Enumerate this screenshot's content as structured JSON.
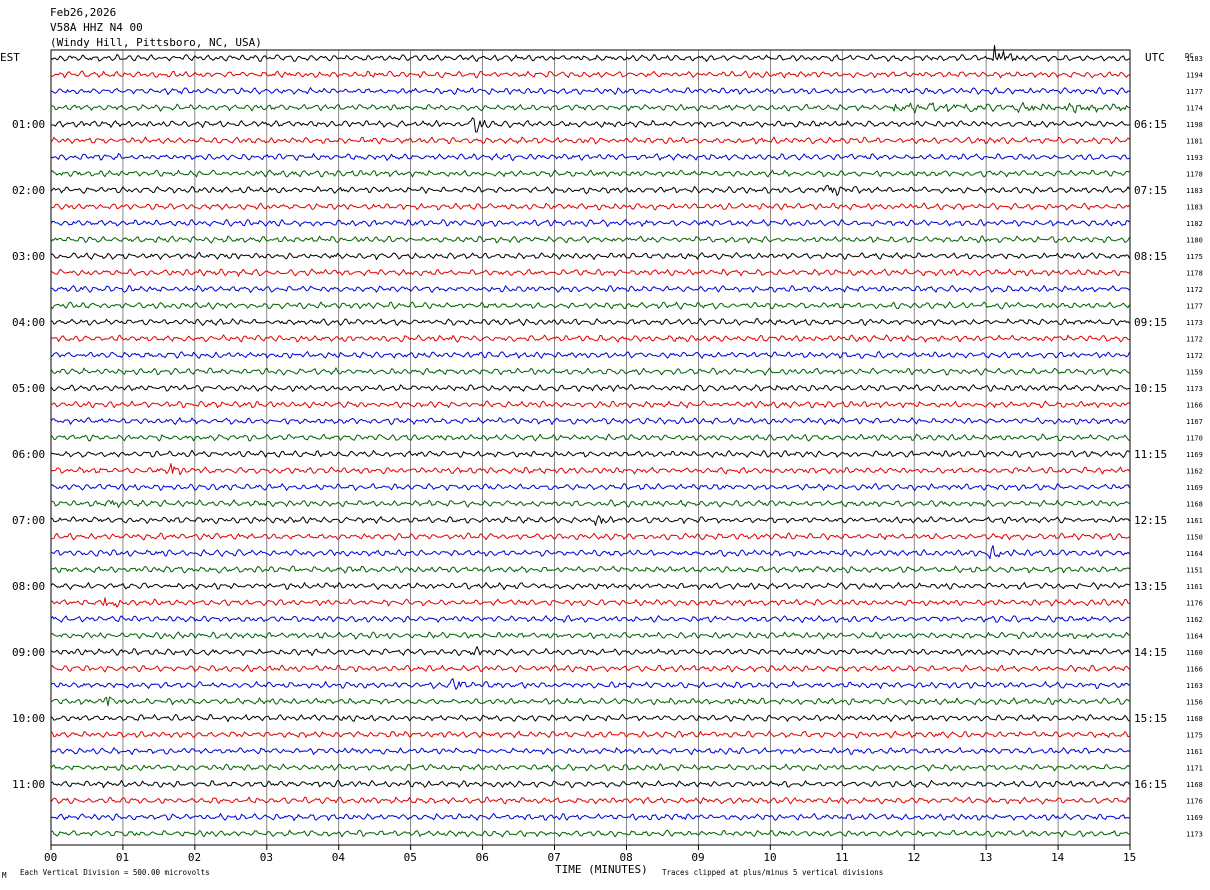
{
  "header": {
    "date": "Feb26,2026",
    "station": "V58A HHZ N4 00",
    "location": "(Windy Hill, Pittsboro, NC, USA)"
  },
  "labels": {
    "left_timezone": "EST",
    "right_timezone": "UTC",
    "dc_header": "DC",
    "x_axis_title": "TIME (MINUTES)"
  },
  "footer": {
    "scale_note": "Each Vertical Division =  500.00 microvolts",
    "clip_note": "Traces clipped at plus/minus 5 vertical divisions",
    "corner_mark": "M"
  },
  "colors": {
    "trace_cycle": [
      "#000000",
      "#e00000",
      "#0000d8",
      "#006000"
    ],
    "grid": "#000000",
    "background": "#ffffff"
  },
  "chart_data": {
    "type": "line",
    "title": "V58A HHZ N4 00",
    "xlabel": "TIME (MINUTES)",
    "x_ticks": [
      "00",
      "01",
      "02",
      "03",
      "04",
      "05",
      "06",
      "07",
      "08",
      "09",
      "10",
      "11",
      "12",
      "13",
      "14",
      "15"
    ],
    "xlim": [
      0,
      15
    ],
    "rows": 48,
    "minutes_per_row": 15,
    "grid": true,
    "left_hour_labels": [
      "01:00",
      "02:00",
      "03:00",
      "04:00",
      "05:00",
      "06:00",
      "07:00",
      "08:00",
      "09:00",
      "10:00",
      "11:00"
    ],
    "right_hour_labels": [
      "06:15",
      "07:15",
      "08:15",
      "09:15",
      "10:15",
      "11:15",
      "12:15",
      "13:15",
      "14:15",
      "15:15",
      "16:15"
    ],
    "dc_offsets": [
      1183,
      1194,
      1177,
      1174,
      1198,
      1181,
      1193,
      1178,
      1183,
      1183,
      1182,
      1180,
      1175,
      1178,
      1172,
      1177,
      1173,
      1172,
      1172,
      1159,
      1173,
      1166,
      1167,
      1170,
      1169,
      1162,
      1169,
      1168,
      1161,
      1150,
      1164,
      1151,
      1161,
      1176,
      1162,
      1164,
      1160,
      1166,
      1163,
      1156,
      1168,
      1175,
      1161,
      1171,
      1168,
      1176,
      1169,
      1173
    ],
    "events": [
      {
        "row": 0,
        "minute": 13.15,
        "amplitude": "large"
      },
      {
        "row": 3,
        "minute": 13.8,
        "amplitude": "noisy"
      },
      {
        "row": 4,
        "minute": 5.9,
        "amplitude": "medium"
      },
      {
        "row": 8,
        "minute": 10.8,
        "amplitude": "medium"
      },
      {
        "row": 25,
        "minute": 1.7,
        "amplitude": "small"
      },
      {
        "row": 27,
        "minute": 0.9,
        "amplitude": "small"
      },
      {
        "row": 28,
        "minute": 7.6,
        "amplitude": "small"
      },
      {
        "row": 30,
        "minute": 13.1,
        "amplitude": "small"
      },
      {
        "row": 33,
        "minute": 0.8,
        "amplitude": "small"
      },
      {
        "row": 36,
        "minute": 5.9,
        "amplitude": "small"
      },
      {
        "row": 38,
        "minute": 5.6,
        "amplitude": "small"
      },
      {
        "row": 39,
        "minute": 0.8,
        "amplitude": "small"
      }
    ]
  }
}
